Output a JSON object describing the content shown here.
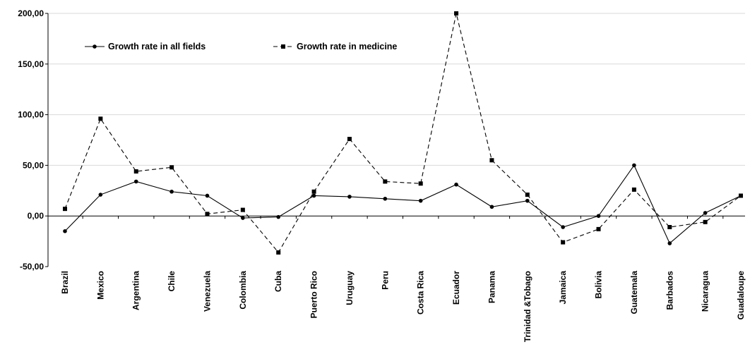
{
  "chart_data": {
    "type": "line",
    "title": "",
    "xlabel": "",
    "ylabel": "",
    "categories": [
      "Brazil",
      "Mexico",
      "Argentina",
      "Chile",
      "Venezuela",
      "Colombia",
      "Cuba",
      "Puerto Rico",
      "Uruguay",
      "Peru",
      "Costa Rica",
      "Ecuador",
      "Panama",
      "Trinidad &Tobago",
      "Jamaica",
      "Bolivia",
      "Guatemala",
      "Barbados",
      "Nicaragua",
      "Guadaloupe"
    ],
    "series": [
      {
        "name": "Growth rate in all fields",
        "style": "solid",
        "marker": "circle",
        "values": [
          -15,
          21,
          34,
          24,
          20,
          -2,
          -1,
          20,
          19,
          17,
          15,
          31,
          9,
          15,
          -11,
          0,
          50,
          -27,
          3,
          20
        ]
      },
      {
        "name": "Growth rate in medicine",
        "style": "dashed",
        "marker": "square",
        "values": [
          7,
          96,
          44,
          48,
          2,
          6,
          -36,
          24,
          76,
          34,
          32,
          200,
          55,
          21,
          -26,
          -13,
          26,
          -11,
          -6,
          20
        ]
      }
    ],
    "ylim": [
      -50,
      200
    ],
    "yticks": [
      "-50,00",
      "0,00",
      "50,00",
      "100,00",
      "150,00",
      "200,00"
    ],
    "ytick_values": [
      -50,
      0,
      50,
      100,
      150,
      200
    ],
    "grid": true,
    "legend_position": "top-left",
    "colors": {
      "line": "#000000",
      "grid": "#d9d9d9"
    }
  }
}
